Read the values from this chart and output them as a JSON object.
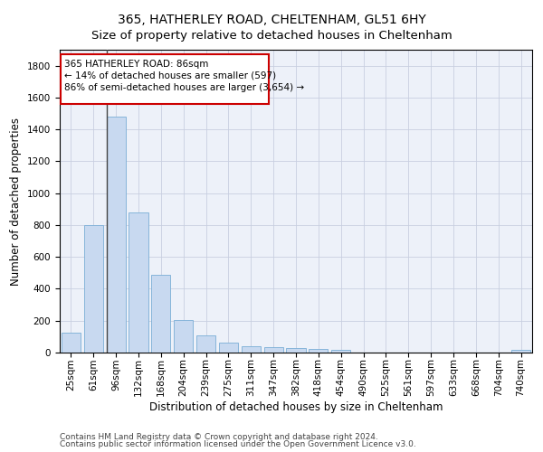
{
  "title1": "365, HATHERLEY ROAD, CHELTENHAM, GL51 6HY",
  "title2": "Size of property relative to detached houses in Cheltenham",
  "xlabel": "Distribution of detached houses by size in Cheltenham",
  "ylabel": "Number of detached properties",
  "categories": [
    "25sqm",
    "61sqm",
    "96sqm",
    "132sqm",
    "168sqm",
    "204sqm",
    "239sqm",
    "275sqm",
    "311sqm",
    "347sqm",
    "382sqm",
    "418sqm",
    "454sqm",
    "490sqm",
    "525sqm",
    "561sqm",
    "597sqm",
    "633sqm",
    "668sqm",
    "704sqm",
    "740sqm"
  ],
  "values": [
    125,
    800,
    1480,
    880,
    490,
    205,
    105,
    65,
    40,
    35,
    30,
    25,
    15,
    0,
    0,
    0,
    0,
    0,
    0,
    0,
    15
  ],
  "bar_color": "#c8d9f0",
  "bar_edge_color": "#7aaed6",
  "highlight_index": 2,
  "highlight_line_color": "#444444",
  "annotation_text": "365 HATHERLEY ROAD: 86sqm\n← 14% of detached houses are smaller (597)\n86% of semi-detached houses are larger (3,654) →",
  "annotation_box_color": "#ffffff",
  "annotation_box_edge_color": "#cc0000",
  "ylim": [
    0,
    1900
  ],
  "yticks": [
    0,
    200,
    400,
    600,
    800,
    1000,
    1200,
    1400,
    1600,
    1800
  ],
  "footer1": "Contains HM Land Registry data © Crown copyright and database right 2024.",
  "footer2": "Contains public sector information licensed under the Open Government Licence v3.0.",
  "title1_fontsize": 10,
  "title2_fontsize": 9.5,
  "xlabel_fontsize": 8.5,
  "ylabel_fontsize": 8.5,
  "tick_fontsize": 7.5,
  "annotation_fontsize": 7.5,
  "footer_fontsize": 6.5,
  "background_color": "#ffffff",
  "grid_color": "#c8cfe0",
  "ax_facecolor": "#edf1f9"
}
